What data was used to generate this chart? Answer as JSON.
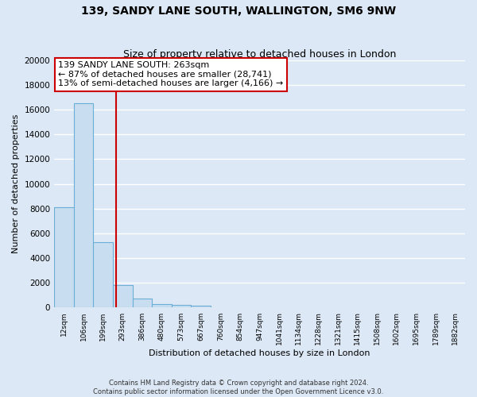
{
  "title": "139, SANDY LANE SOUTH, WALLINGTON, SM6 9NW",
  "subtitle": "Size of property relative to detached houses in London",
  "xlabel": "Distribution of detached houses by size in London",
  "ylabel": "Number of detached properties",
  "bar_labels": [
    "12sqm",
    "106sqm",
    "199sqm",
    "293sqm",
    "386sqm",
    "480sqm",
    "573sqm",
    "667sqm",
    "760sqm",
    "854sqm",
    "947sqm",
    "1041sqm",
    "1134sqm",
    "1228sqm",
    "1321sqm",
    "1415sqm",
    "1508sqm",
    "1602sqm",
    "1695sqm",
    "1789sqm",
    "1882sqm"
  ],
  "bar_values": [
    8100,
    16500,
    5300,
    1800,
    750,
    300,
    200,
    150,
    0,
    0,
    0,
    0,
    0,
    0,
    0,
    0,
    0,
    0,
    0,
    0,
    0
  ],
  "ylim": [
    0,
    20000
  ],
  "yticks": [
    0,
    2000,
    4000,
    6000,
    8000,
    10000,
    12000,
    14000,
    16000,
    18000,
    20000
  ],
  "bar_fill_color": "#c8ddf0",
  "bar_edge_color": "#6baed6",
  "vline_color": "#cc0000",
  "annotation_title": "139 SANDY LANE SOUTH: 263sqm",
  "annotation_line1": "← 87% of detached houses are smaller (28,741)",
  "annotation_line2": "13% of semi-detached houses are larger (4,166) →",
  "annotation_box_facecolor": "#ffffff",
  "annotation_box_edgecolor": "#cc0000",
  "footer_line1": "Contains HM Land Registry data © Crown copyright and database right 2024.",
  "footer_line2": "Contains public sector information licensed under the Open Government Licence v3.0.",
  "background_color": "#dce8f5",
  "plot_bg_color": "#dce8f5",
  "grid_color": "#ffffff",
  "title_fontsize": 10,
  "subtitle_fontsize": 9
}
